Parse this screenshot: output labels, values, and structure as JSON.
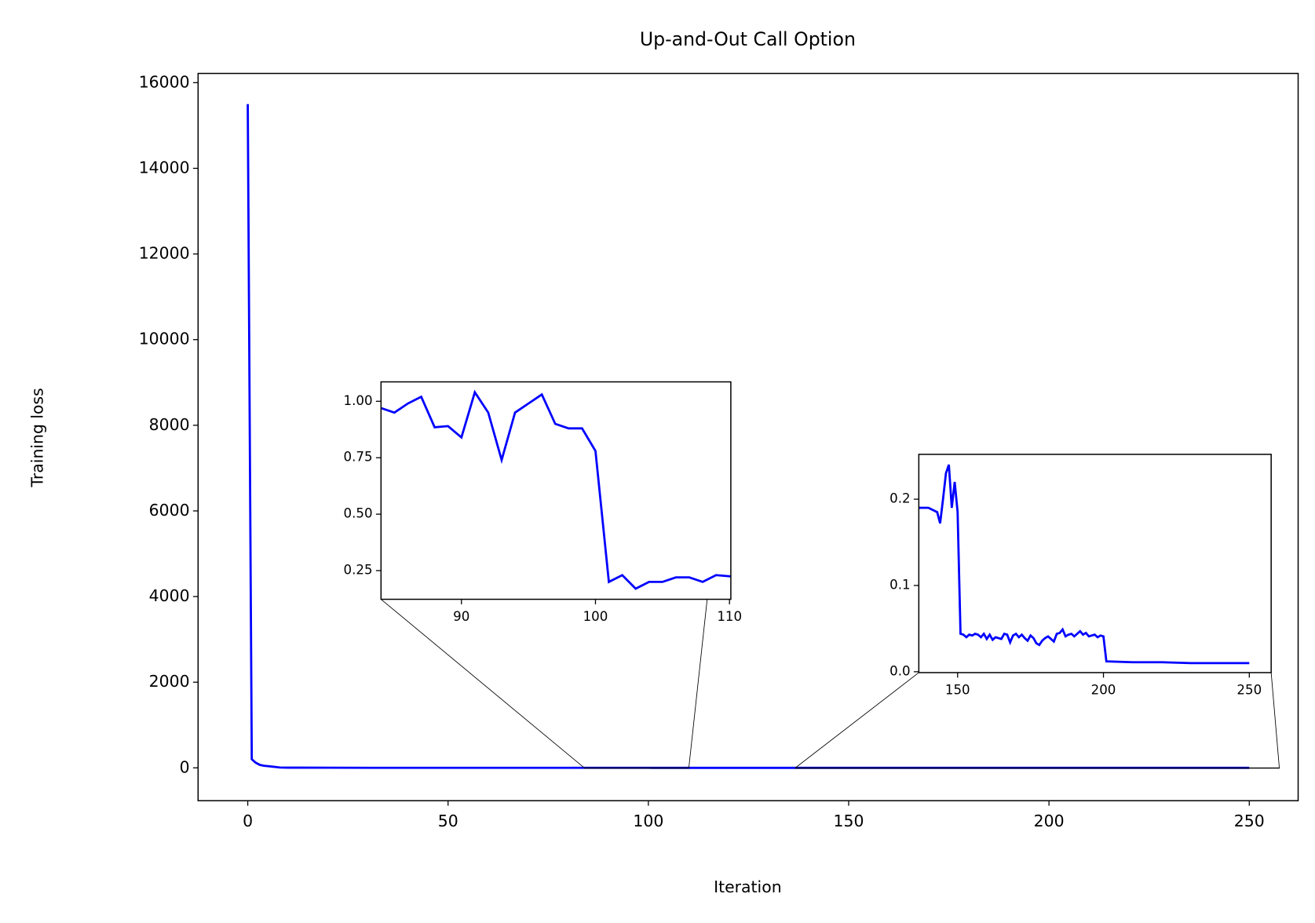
{
  "chart_data": {
    "type": "line",
    "title": "Up-and-Out Call Option",
    "xlabel": "Iteration",
    "ylabel": "Training loss",
    "x": [
      0,
      1,
      2,
      3,
      4,
      5,
      6,
      7,
      8,
      10,
      20,
      30,
      40,
      50,
      60,
      70,
      80,
      85,
      86,
      87,
      88,
      89,
      90,
      91,
      92,
      93,
      94,
      95,
      96,
      97,
      98,
      99,
      100,
      101,
      102,
      103,
      104,
      105,
      106,
      107,
      108,
      109,
      115,
      120,
      130,
      140,
      143,
      144,
      145,
      146,
      147,
      148,
      149,
      150,
      151,
      152,
      153,
      154,
      155,
      156,
      157,
      158,
      159,
      160,
      161,
      162,
      163,
      164,
      165,
      166,
      167,
      168,
      169,
      170,
      171,
      172,
      173,
      174,
      175,
      176,
      177,
      178,
      179,
      180,
      181,
      182,
      183,
      184,
      185,
      186,
      187,
      188,
      189,
      190,
      191,
      192,
      193,
      194,
      195,
      196,
      197,
      198,
      199,
      200,
      201,
      210,
      220,
      230,
      240,
      250
    ],
    "series": [
      {
        "color": "#0000ff",
        "values": [
          15500,
          200,
          120,
          70,
          50,
          40,
          30,
          20,
          8,
          5,
          3,
          2,
          1.5,
          1.3,
          1.2,
          1.1,
          1.05,
          0.95,
          0.99,
          1.02,
          0.885,
          0.89,
          0.84,
          1.04,
          0.95,
          0.74,
          0.95,
          0.99,
          1.03,
          0.9,
          0.88,
          0.88,
          0.78,
          0.2,
          0.23,
          0.17,
          0.2,
          0.2,
          0.22,
          0.22,
          0.2,
          0.23,
          0.2,
          0.19,
          0.19,
          0.19,
          0.185,
          0.172,
          0.2,
          0.23,
          0.24,
          0.19,
          0.22,
          0.185,
          0.044,
          0.043,
          0.04,
          0.043,
          0.042,
          0.044,
          0.043,
          0.04,
          0.044,
          0.038,
          0.043,
          0.037,
          0.04,
          0.039,
          0.038,
          0.044,
          0.043,
          0.034,
          0.042,
          0.044,
          0.04,
          0.043,
          0.039,
          0.036,
          0.042,
          0.039,
          0.033,
          0.031,
          0.036,
          0.039,
          0.041,
          0.038,
          0.035,
          0.044,
          0.045,
          0.049,
          0.041,
          0.043,
          0.044,
          0.041,
          0.044,
          0.047,
          0.043,
          0.045,
          0.041,
          0.042,
          0.043,
          0.04,
          0.042,
          0.041,
          0.012,
          0.011,
          0.011,
          0.01,
          0.01,
          0.01
        ]
      }
    ],
    "xlim": [
      -12.4,
      262.2
    ],
    "ylim": [
      -767,
      16216
    ],
    "xticks": [
      0,
      50,
      100,
      150,
      200,
      250
    ],
    "yticks": [
      0,
      2000,
      4000,
      6000,
      8000,
      10000,
      12000,
      14000,
      16000
    ],
    "insets": [
      {
        "xlim": [
          84.0,
          110.1
        ],
        "ylim": [
          0.123,
          1.086
        ],
        "xticks": [
          90,
          100,
          110
        ],
        "yticks": [
          {
            "value": 0.25,
            "label": "0.25"
          },
          {
            "value": 0.5,
            "label": "0.50"
          },
          {
            "value": 0.75,
            "label": "0.75"
          },
          {
            "value": 1,
            "label": "1.00"
          }
        ]
      },
      {
        "xlim": [
          136.7,
          257.5
        ],
        "ylim": [
          -0.001,
          0.252
        ],
        "xticks": [
          150,
          200,
          250
        ],
        "yticks": [
          {
            "value": 0,
            "label": "0.0"
          },
          0.1,
          0.2
        ]
      }
    ]
  }
}
